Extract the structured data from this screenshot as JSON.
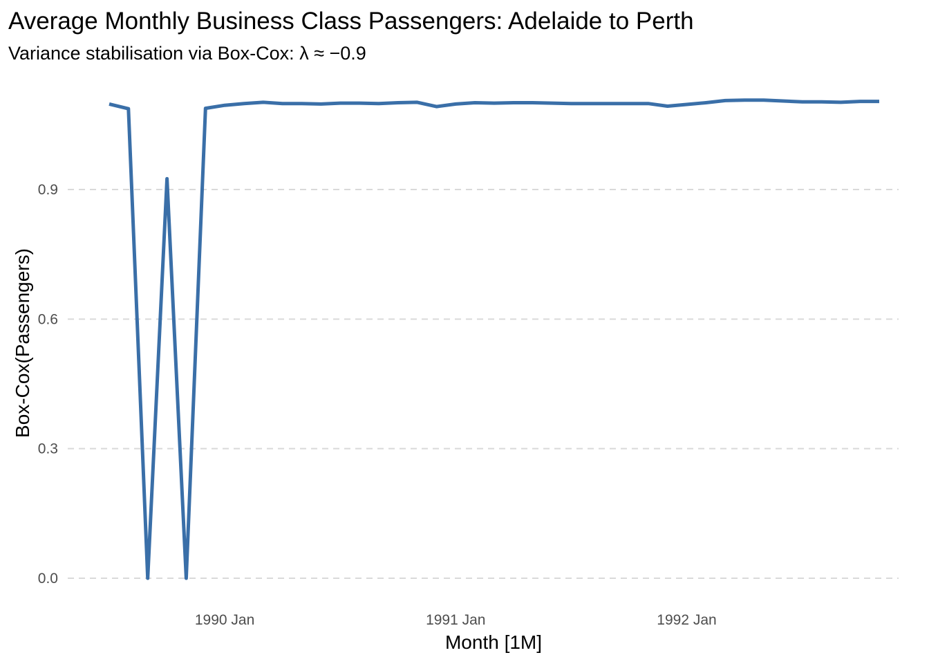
{
  "chart_data": {
    "type": "line",
    "title": "Average Monthly Business Class Passengers: Adelaide to Perth",
    "subtitle": "Variance stabilisation via Box-Cox: λ ≈ −0.9",
    "xlabel": "Month [1M]",
    "ylabel": "Box-Cox(Passengers)",
    "x_ticks": [
      "1990 Jan",
      "1991 Jan",
      "1992 Jan"
    ],
    "y_ticks": [
      "0.0",
      "0.3",
      "0.6",
      "0.9"
    ],
    "ylim": [
      -0.05,
      1.15
    ],
    "grid": "horizontal dashed",
    "legend": "none",
    "color": "#3a6fa8",
    "series": [
      {
        "x": [
          "1989 Jul",
          "1989 Aug",
          "1989 Sep",
          "1989 Oct",
          "1989 Nov",
          "1989 Dec",
          "1990 Jan",
          "1990 Feb",
          "1990 Mar",
          "1990 Apr",
          "1990 May",
          "1990 Jun",
          "1990 Jul",
          "1990 Aug",
          "1990 Sep",
          "1990 Oct",
          "1990 Nov",
          "1990 Dec",
          "1991 Jan",
          "1991 Feb",
          "1991 Mar",
          "1991 Apr",
          "1991 May",
          "1991 Jun",
          "1991 Jul",
          "1991 Aug",
          "1991 Sep",
          "1991 Oct",
          "1991 Nov",
          "1991 Dec",
          "1992 Jan",
          "1992 Feb",
          "1992 Mar",
          "1992 Apr",
          "1992 May",
          "1992 Jun",
          "1992 Jul",
          "1992 Aug",
          "1992 Sep",
          "1992 Oct",
          "1992 Nov"
        ],
        "values": [
          1.098,
          1.087,
          0.0,
          0.925,
          0.0,
          1.088,
          1.095,
          1.099,
          1.102,
          1.099,
          1.099,
          1.098,
          1.1,
          1.1,
          1.099,
          1.101,
          1.102,
          1.092,
          1.098,
          1.101,
          1.1,
          1.101,
          1.101,
          1.1,
          1.099,
          1.099,
          1.099,
          1.099,
          1.099,
          1.093,
          1.097,
          1.101,
          1.106,
          1.107,
          1.107,
          1.105,
          1.103,
          1.103,
          1.102,
          1.104,
          1.104
        ]
      }
    ]
  }
}
